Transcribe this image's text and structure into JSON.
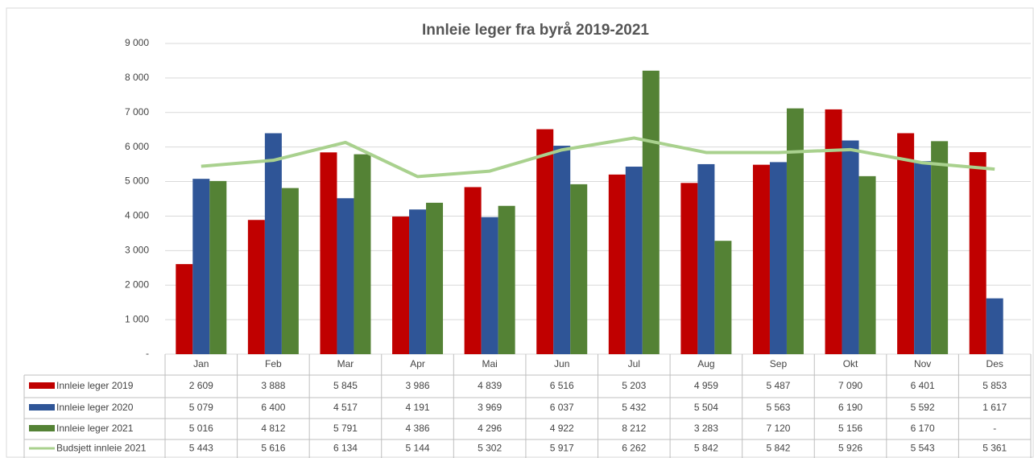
{
  "chart_data": {
    "type": "bar",
    "title": "Innleie leger fra byrå 2019-2021",
    "categories": [
      "Jan",
      "Feb",
      "Mar",
      "Apr",
      "Mai",
      "Jun",
      "Jul",
      "Aug",
      "Sep",
      "Okt",
      "Nov",
      "Des"
    ],
    "series": [
      {
        "name": "Innleie leger 2019",
        "color": "#c00000",
        "type": "bar",
        "values": [
          2609,
          3888,
          5845,
          3986,
          4839,
          6516,
          5203,
          4959,
          5487,
          7090,
          6401,
          5853
        ],
        "value_labels": [
          "2 609",
          "3 888",
          "5 845",
          "3 986",
          "4 839",
          "6 516",
          "5 203",
          "4 959",
          "5 487",
          "7 090",
          "6 401",
          "5 853"
        ]
      },
      {
        "name": "Innleie leger 2020",
        "color": "#2f5597",
        "type": "bar",
        "values": [
          5079,
          6400,
          4517,
          4191,
          3969,
          6037,
          5432,
          5504,
          5563,
          6190,
          5592,
          1617
        ],
        "value_labels": [
          "5 079",
          "6 400",
          "4 517",
          "4 191",
          "3 969",
          "6 037",
          "5 432",
          "5 504",
          "5 563",
          "6 190",
          "5 592",
          "1 617"
        ]
      },
      {
        "name": "Innleie leger 2021",
        "color": "#548235",
        "type": "bar",
        "values": [
          5016,
          4812,
          5791,
          4386,
          4296,
          4922,
          8212,
          3283,
          7120,
          5156,
          6170,
          null
        ],
        "value_labels": [
          "5 016",
          "4 812",
          "5 791",
          "4 386",
          "4 296",
          "4 922",
          "8 212",
          "3 283",
          "7 120",
          "5 156",
          "6 170",
          "-"
        ]
      },
      {
        "name": "Budsjett innleie 2021",
        "color": "#a9d18e",
        "type": "line",
        "values": [
          5443,
          5616,
          6134,
          5144,
          5302,
          5917,
          6262,
          5842,
          5842,
          5926,
          5543,
          5361
        ],
        "value_labels": [
          "5 443",
          "5 616",
          "6 134",
          "5 144",
          "5 302",
          "5 917",
          "6 262",
          "5 842",
          "5 842",
          "5 926",
          "5 543",
          "5 361"
        ]
      }
    ],
    "ylim": [
      0,
      9000
    ],
    "yticks": [
      {
        "value": 0,
        "label": "-"
      },
      {
        "value": 1000,
        "label": "1 000"
      },
      {
        "value": 2000,
        "label": "2 000"
      },
      {
        "value": 3000,
        "label": "3 000"
      },
      {
        "value": 4000,
        "label": "4 000"
      },
      {
        "value": 5000,
        "label": "5 000"
      },
      {
        "value": 6000,
        "label": "6 000"
      },
      {
        "value": 7000,
        "label": "7 000"
      },
      {
        "value": 8000,
        "label": "8 000"
      },
      {
        "value": 9000,
        "label": "9 000"
      }
    ],
    "grid": true
  }
}
